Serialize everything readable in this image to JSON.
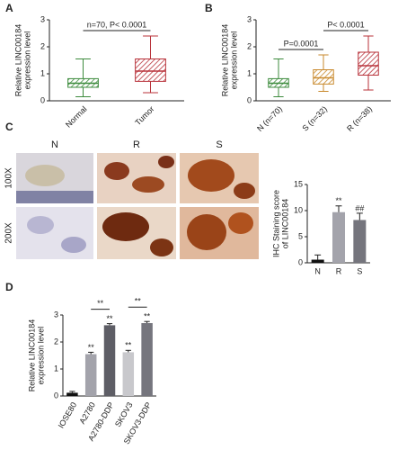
{
  "chart_data": [
    {
      "panel": "A",
      "type": "box",
      "ylabel": [
        "Relative LINC00184",
        "expression level"
      ],
      "categories": [
        "Normal",
        "Tumor"
      ],
      "colors": [
        "#3d8b3d",
        "#b8323a"
      ],
      "boxes": [
        {
          "min": 0.15,
          "q1": 0.5,
          "median": 0.65,
          "q3": 0.82,
          "max": 1.55
        },
        {
          "min": 0.3,
          "q1": 0.72,
          "median": 1.1,
          "q3": 1.55,
          "max": 2.4
        }
      ],
      "ylim": [
        0,
        3
      ],
      "yticks": [
        0,
        1,
        2,
        3
      ],
      "brackets": [
        {
          "from": 0,
          "to": 1,
          "text": "n=70, P< 0.0001"
        }
      ]
    },
    {
      "panel": "B",
      "type": "box",
      "ylabel": [
        "Relative LINC00184",
        "expression level"
      ],
      "categories": [
        "N (n=70)",
        "S (n=32)",
        "R (n=38)"
      ],
      "colors": [
        "#3d8b3d",
        "#c98a2e",
        "#b8323a"
      ],
      "boxes": [
        {
          "min": 0.15,
          "q1": 0.5,
          "median": 0.65,
          "q3": 0.82,
          "max": 1.55
        },
        {
          "min": 0.35,
          "q1": 0.62,
          "median": 0.85,
          "q3": 1.15,
          "max": 1.7
        },
        {
          "min": 0.4,
          "q1": 0.95,
          "median": 1.3,
          "q3": 1.8,
          "max": 2.4
        }
      ],
      "ylim": [
        0,
        3
      ],
      "yticks": [
        0,
        1,
        2,
        3
      ],
      "brackets": [
        {
          "from": 0,
          "to": 1,
          "text": "P=0.0001"
        },
        {
          "from": 1,
          "to": 2,
          "text": "P< 0.0001"
        }
      ]
    },
    {
      "panel": "C",
      "type": "bar",
      "image_columns": [
        "N",
        "R",
        "S"
      ],
      "image_rows": [
        "100X",
        "200X"
      ],
      "ylabel": [
        "IHC Staining score",
        "of LINC00184"
      ],
      "categories": [
        "N",
        "R",
        "S"
      ],
      "colors": [
        "#111111",
        "#a3a3ab",
        "#75757d"
      ],
      "values": [
        0.6,
        9.7,
        8.2
      ],
      "errors": [
        0.9,
        1.2,
        1.3
      ],
      "bar_marks": [
        null,
        "**",
        "##"
      ],
      "ylim": [
        0,
        15
      ],
      "yticks": [
        0,
        5,
        10,
        15
      ]
    },
    {
      "panel": "D",
      "type": "bar",
      "ylabel": [
        "Relative LINC00184",
        "expression level"
      ],
      "categories": [
        "IOSE80",
        "A2780",
        "A2780-DDP",
        "SKOV3",
        "SKOV3-DDP"
      ],
      "colors": [
        "#111111",
        "#a3a3ab",
        "#5e5e66",
        "#c8c8cc",
        "#75757d"
      ],
      "values": [
        0.12,
        1.55,
        2.62,
        1.62,
        2.7
      ],
      "errors": [
        0.05,
        0.07,
        0.06,
        0.07,
        0.06
      ],
      "bar_marks": [
        null,
        "**",
        "**",
        "**",
        "**"
      ],
      "ylim": [
        0,
        3
      ],
      "yticks": [
        0,
        1,
        2,
        3
      ],
      "brackets": [
        {
          "from": 1,
          "to": 2,
          "text": "**"
        },
        {
          "from": 3,
          "to": 4,
          "text": "**"
        }
      ]
    }
  ]
}
